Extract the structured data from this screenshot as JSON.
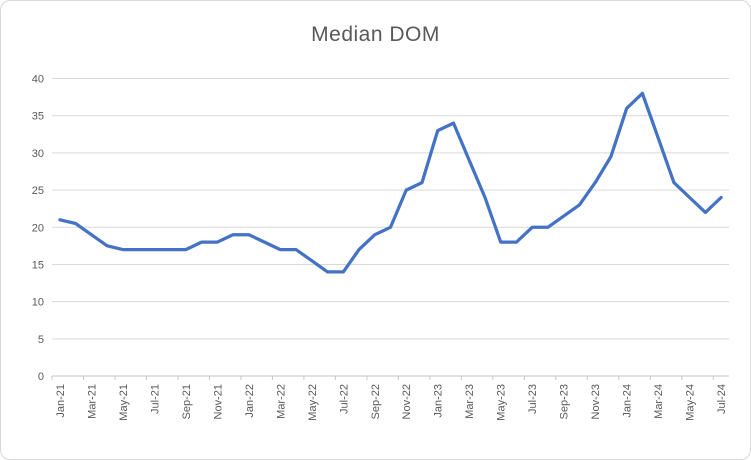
{
  "chart": {
    "title": "Median DOM"
  },
  "chart_data": {
    "type": "line",
    "title": "Median DOM",
    "series_name": "Median DOM",
    "categories": [
      "Jan-21",
      "Feb-21",
      "Mar-21",
      "Apr-21",
      "May-21",
      "Jun-21",
      "Jul-21",
      "Aug-21",
      "Sep-21",
      "Oct-21",
      "Nov-21",
      "Dec-21",
      "Jan-22",
      "Feb-22",
      "Mar-22",
      "Apr-22",
      "May-22",
      "Jun-22",
      "Jul-22",
      "Aug-22",
      "Sep-22",
      "Oct-22",
      "Nov-22",
      "Dec-22",
      "Jan-23",
      "Feb-23",
      "Mar-23",
      "Apr-23",
      "May-23",
      "Jun-23",
      "Jul-23",
      "Aug-23",
      "Sep-23",
      "Oct-23",
      "Nov-23",
      "Dec-23",
      "Jan-24",
      "Feb-24",
      "Mar-24",
      "Apr-24",
      "May-24",
      "Jun-24",
      "Jul-24"
    ],
    "values": [
      21,
      20.5,
      19,
      17.5,
      17,
      17,
      17,
      17,
      17,
      18,
      18,
      19,
      19,
      18,
      17,
      17,
      15.5,
      14,
      14,
      17,
      19,
      20,
      25,
      26,
      33,
      34,
      29,
      24,
      18,
      18,
      20,
      20,
      21.5,
      23,
      26,
      29.5,
      36,
      38,
      32,
      26,
      24,
      22,
      24
    ],
    "x_tick_labels": [
      "Jan-21",
      "Mar-21",
      "May-21",
      "Jul-21",
      "Sep-21",
      "Nov-21",
      "Jan-22",
      "Mar-22",
      "May-22",
      "Jul-22",
      "Sep-22",
      "Nov-22",
      "Jan-23",
      "Mar-23",
      "May-23",
      "Jul-23",
      "Sep-23",
      "Nov-23",
      "Jan-24",
      "Mar-24",
      "May-24",
      "Jul-24"
    ],
    "y_tick_labels": [
      "0",
      "5",
      "10",
      "15",
      "20",
      "25",
      "30",
      "35",
      "40"
    ],
    "ylim": [
      0,
      40
    ],
    "y_step": 5,
    "x_label_rotation_deg": -90,
    "grid": "horizontal",
    "legend": "none",
    "colors": {
      "line": "#4472C4",
      "gridline": "#D9D9D9",
      "axis": "#C6C6C6",
      "tick_label": "#595959",
      "title": "#595959",
      "background": "#FFFFFF",
      "frame_border": "#D9D9D9"
    }
  }
}
